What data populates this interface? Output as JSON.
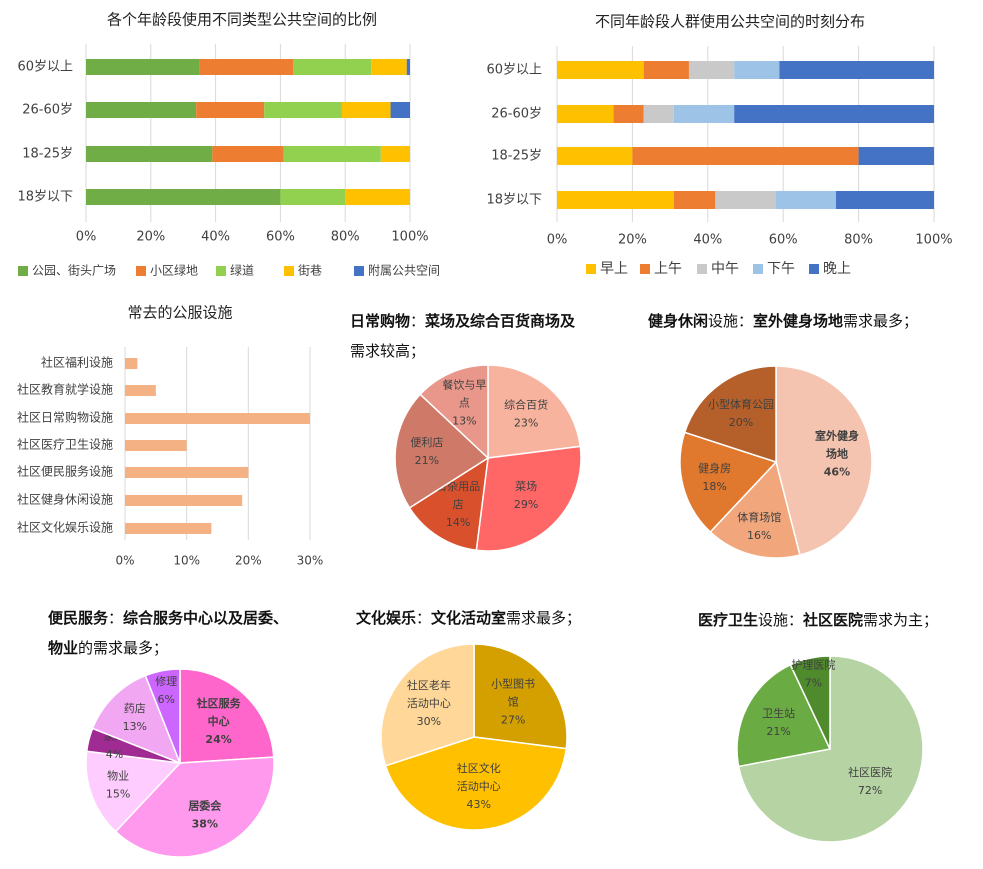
{
  "chart_data": [
    {
      "type": "bar",
      "title": "各个年龄段使用不同类型公共空间的比例",
      "categories": [
        "60岁以上",
        "26-60岁",
        "18-25岁",
        "18岁以下"
      ],
      "series": [
        {
          "name": "公园、街头广场",
          "color": "#70AD47",
          "values": [
            35,
            34,
            39,
            60
          ]
        },
        {
          "name": "小区绿地",
          "color": "#ED7D31",
          "values": [
            29,
            21,
            22,
            0
          ]
        },
        {
          "name": "绿道",
          "color": "#92D050",
          "values": [
            24,
            24,
            30,
            20
          ]
        },
        {
          "name": "街巷",
          "color": "#FFC000",
          "values": [
            11,
            15,
            9,
            20
          ]
        },
        {
          "name": "附属公共空间",
          "color": "#4472C4",
          "values": [
            1,
            6,
            0,
            0
          ]
        }
      ],
      "xticks": [
        "0%",
        "20%",
        "40%",
        "60%",
        "80%",
        "100%"
      ],
      "xlim": [
        0,
        100
      ],
      "legend": "bottom"
    },
    {
      "type": "bar",
      "title": "不同年龄段人群使用公共空间的时刻分布",
      "categories": [
        "60岁以上",
        "26-60岁",
        "18-25岁",
        "18岁以下"
      ],
      "series": [
        {
          "name": "早上",
          "color": "#FFC000",
          "values": [
            23,
            15,
            20,
            31
          ]
        },
        {
          "name": "上午",
          "color": "#ED7D31",
          "values": [
            12,
            8,
            60,
            11
          ]
        },
        {
          "name": "中午",
          "color": "#C9C9C9",
          "values": [
            12,
            8,
            0,
            16
          ]
        },
        {
          "name": "下午",
          "color": "#9DC3E6",
          "values": [
            12,
            16,
            0,
            16
          ]
        },
        {
          "name": "晚上",
          "color": "#4472C4",
          "values": [
            41,
            53,
            20,
            26
          ]
        }
      ],
      "xticks": [
        "0%",
        "20%",
        "40%",
        "60%",
        "80%",
        "100%"
      ],
      "xlim": [
        0,
        100
      ],
      "legend": "bottom"
    },
    {
      "type": "bar",
      "title": "常去的公服设施",
      "categories": [
        "社区福利设施",
        "社区教育就学设施",
        "社区日常购物设施",
        "社区医疗卫生设施",
        "社区便民服务设施",
        "社区健身休闲设施",
        "社区文化娱乐设施"
      ],
      "values": [
        2,
        5,
        30,
        10,
        20,
        19,
        14
      ],
      "color": "#F4B183",
      "xticks": [
        "0%",
        "10%",
        "20%",
        "30%"
      ],
      "xlim": [
        0,
        30
      ]
    },
    {
      "type": "pie",
      "title": {
        "parts": [
          {
            "t": "日常购物",
            "b": true
          },
          {
            "t": "：",
            "b": false
          },
          {
            "t": "菜场及综合百货商场及",
            "b": true
          }
        ],
        "line2": [
          {
            "t": "需求较高；",
            "b": false
          }
        ]
      },
      "slices": [
        {
          "label": "综合百货",
          "value": 23,
          "pct": "23%",
          "color": "#F8B39E",
          "bold": false
        },
        {
          "label": "菜场",
          "value": 29,
          "pct": "29%",
          "color": "#FF6666",
          "bold": false
        },
        {
          "label": "日杂用品店",
          "value": 14,
          "pct": "14%",
          "color": "#D9502D",
          "bold": false
        },
        {
          "label": "便利店",
          "value": 21,
          "pct": "21%",
          "color": "#CF7A68",
          "bold": false
        },
        {
          "label": "餐饮与早点",
          "value": 13,
          "pct": "13%",
          "color": "#E8978A",
          "bold": false
        }
      ]
    },
    {
      "type": "pie",
      "title": {
        "parts": [
          {
            "t": "健身休闲",
            "b": true
          },
          {
            "t": "设施：",
            "b": false
          },
          {
            "t": "室外健身场地",
            "b": true
          },
          {
            "t": "需求最多；",
            "b": false
          }
        ]
      },
      "slices": [
        {
          "label": "室外健身场地",
          "value": 46,
          "pct": "46%",
          "color": "#F4C4B0",
          "bold": true
        },
        {
          "label": "体育场馆",
          "value": 16,
          "pct": "16%",
          "color": "#F2A67C",
          "bold": false
        },
        {
          "label": "健身房",
          "value": 18,
          "pct": "18%",
          "color": "#E0782E",
          "bold": false
        },
        {
          "label": "小型体育公园",
          "value": 20,
          "pct": "20%",
          "color": "#B5602A",
          "bold": false
        }
      ]
    },
    {
      "type": "pie",
      "title": {
        "parts": [
          {
            "t": "便民服务",
            "b": true
          },
          {
            "t": "：",
            "b": false
          },
          {
            "t": "综合服务中心以及居委、",
            "b": true
          }
        ],
        "line2": [
          {
            "t": "物业",
            "b": true
          },
          {
            "t": "的需求最多；",
            "b": false
          }
        ]
      },
      "slices": [
        {
          "label": "社区服务中心",
          "value": 24,
          "pct": "24%",
          "color": "#FF66CC",
          "bold": true
        },
        {
          "label": "居委会",
          "value": 38,
          "pct": "38%",
          "color": "#FF99EE",
          "bold": true
        },
        {
          "label": "物业",
          "value": 15,
          "pct": "15%",
          "color": "#FFCCFF",
          "bold": false
        },
        {
          "label": "家政",
          "value": 4,
          "pct": "4%",
          "color": "#A02B93",
          "bold": false
        },
        {
          "label": "药店",
          "value": 13,
          "pct": "13%",
          "color": "#F2A7F2",
          "bold": false
        },
        {
          "label": "修理",
          "value": 6,
          "pct": "6%",
          "color": "#CC66FF",
          "bold": false
        }
      ]
    },
    {
      "type": "pie",
      "title": {
        "parts": [
          {
            "t": "文化娱乐",
            "b": true
          },
          {
            "t": "：",
            "b": false
          },
          {
            "t": "文化活动室",
            "b": true
          },
          {
            "t": "需求最多；",
            "b": false
          }
        ]
      },
      "slices": [
        {
          "label": "小型图书馆",
          "value": 27,
          "pct": "27%",
          "color": "#D4A000",
          "bold": false
        },
        {
          "label": "社区文化活动中心",
          "value": 43,
          "pct": "43%",
          "color": "#FFC000",
          "bold": false
        },
        {
          "label": "社区老年活动中心",
          "value": 30,
          "pct": "30%",
          "color": "#FFD899",
          "bold": false
        }
      ]
    },
    {
      "type": "pie",
      "title": {
        "parts": [
          {
            "t": "医疗卫生",
            "b": true
          },
          {
            "t": "设施：",
            "b": false
          },
          {
            "t": "社区医院",
            "b": true
          },
          {
            "t": "需求为主；",
            "b": false
          }
        ]
      },
      "slices": [
        {
          "label": "社区医院",
          "value": 72,
          "pct": "72%",
          "color": "#B5D3A3",
          "bold": false
        },
        {
          "label": "卫生站",
          "value": 21,
          "pct": "21%",
          "color": "#6AAB44",
          "bold": false
        },
        {
          "label": "护理医院",
          "value": 7,
          "pct": "7%",
          "color": "#4F8A2D",
          "bold": false
        }
      ]
    }
  ]
}
